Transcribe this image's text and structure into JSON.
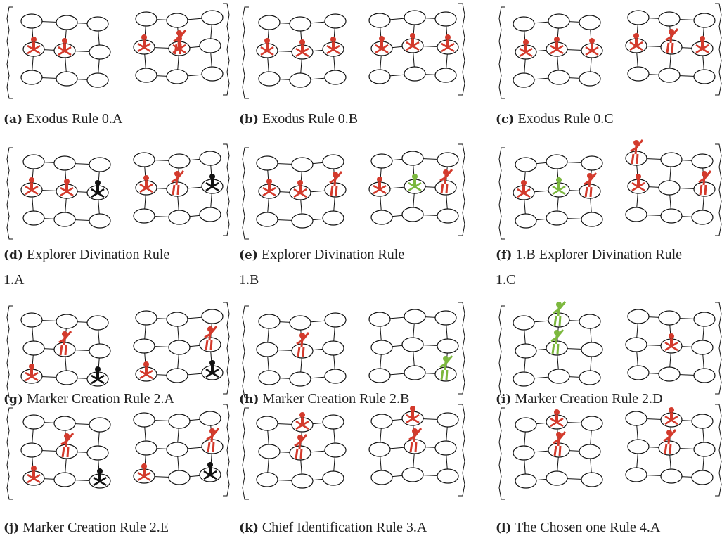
{
  "panels": [
    {
      "label": "(a)",
      "caption": "Exodus Rule 0.A"
    },
    {
      "label": "(b)",
      "caption": "Exodus Rule 0.B"
    },
    {
      "label": "(c)",
      "caption": "Exodus Rule 0.C"
    },
    {
      "label": "(d)",
      "caption": "Explorer Divination Rule 1.A"
    },
    {
      "label": "(e)",
      "caption": "Explorer Divination Rule 1.B"
    },
    {
      "label": "(f)",
      "caption": "1.B Explorer Divination Rule 1.C"
    },
    {
      "label": "(g)",
      "caption": "Marker Creation Rule 2.A"
    },
    {
      "label": "(h)",
      "caption": "Marker Creation Rule 2.B"
    },
    {
      "label": "(i)",
      "caption": "Marker Creation Rule 2.D"
    },
    {
      "label": "(j)",
      "caption": "Marker Creation Rule 2.E"
    },
    {
      "label": "(k)",
      "caption": "Chief Identification Rule 3.A"
    },
    {
      "label": "(l)",
      "caption": "The Chosen one Rule 4.A"
    }
  ]
}
